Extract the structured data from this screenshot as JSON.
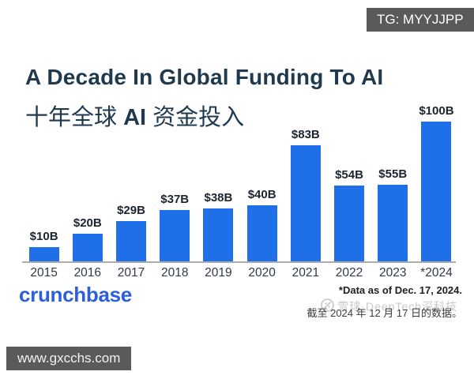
{
  "overlays": {
    "tg_badge": "TG: MYYJJPP",
    "site_badge": "www.gxcchs.com"
  },
  "header": {
    "title_en": "A Decade In Global Funding To AI",
    "subtitle_zh_prefix": "十年全球",
    "subtitle_zh_ai": "AI",
    "subtitle_zh_suffix": "资金投入"
  },
  "chart_data": {
    "type": "bar",
    "title": "A Decade In Global Funding To AI",
    "title_zh": "十年全球 AI 资金投入",
    "categories": [
      "2015",
      "2016",
      "2017",
      "2018",
      "2019",
      "2020",
      "2021",
      "2022",
      "2023",
      "*2024"
    ],
    "values": [
      10,
      20,
      29,
      37,
      38,
      40,
      83,
      54,
      55,
      100
    ],
    "value_labels": [
      "$10B",
      "$20B",
      "$29B",
      "$37B",
      "$38B",
      "$40B",
      "$83B",
      "$54B",
      "$55B",
      "$100B"
    ],
    "ylim": [
      0,
      100
    ],
    "bar_color": "#1E6FE8",
    "grid": false,
    "legend": "none",
    "xlabel": "",
    "ylabel": ""
  },
  "footer": {
    "brand": "crunchbase",
    "brand_color": "#2D5FD8",
    "note_en": "*Data as of Dec. 17, 2024.",
    "note_zh": "截至 2024 年 12 月 17 日的数据。",
    "watermark": "雪球·DeepTech深科技"
  }
}
